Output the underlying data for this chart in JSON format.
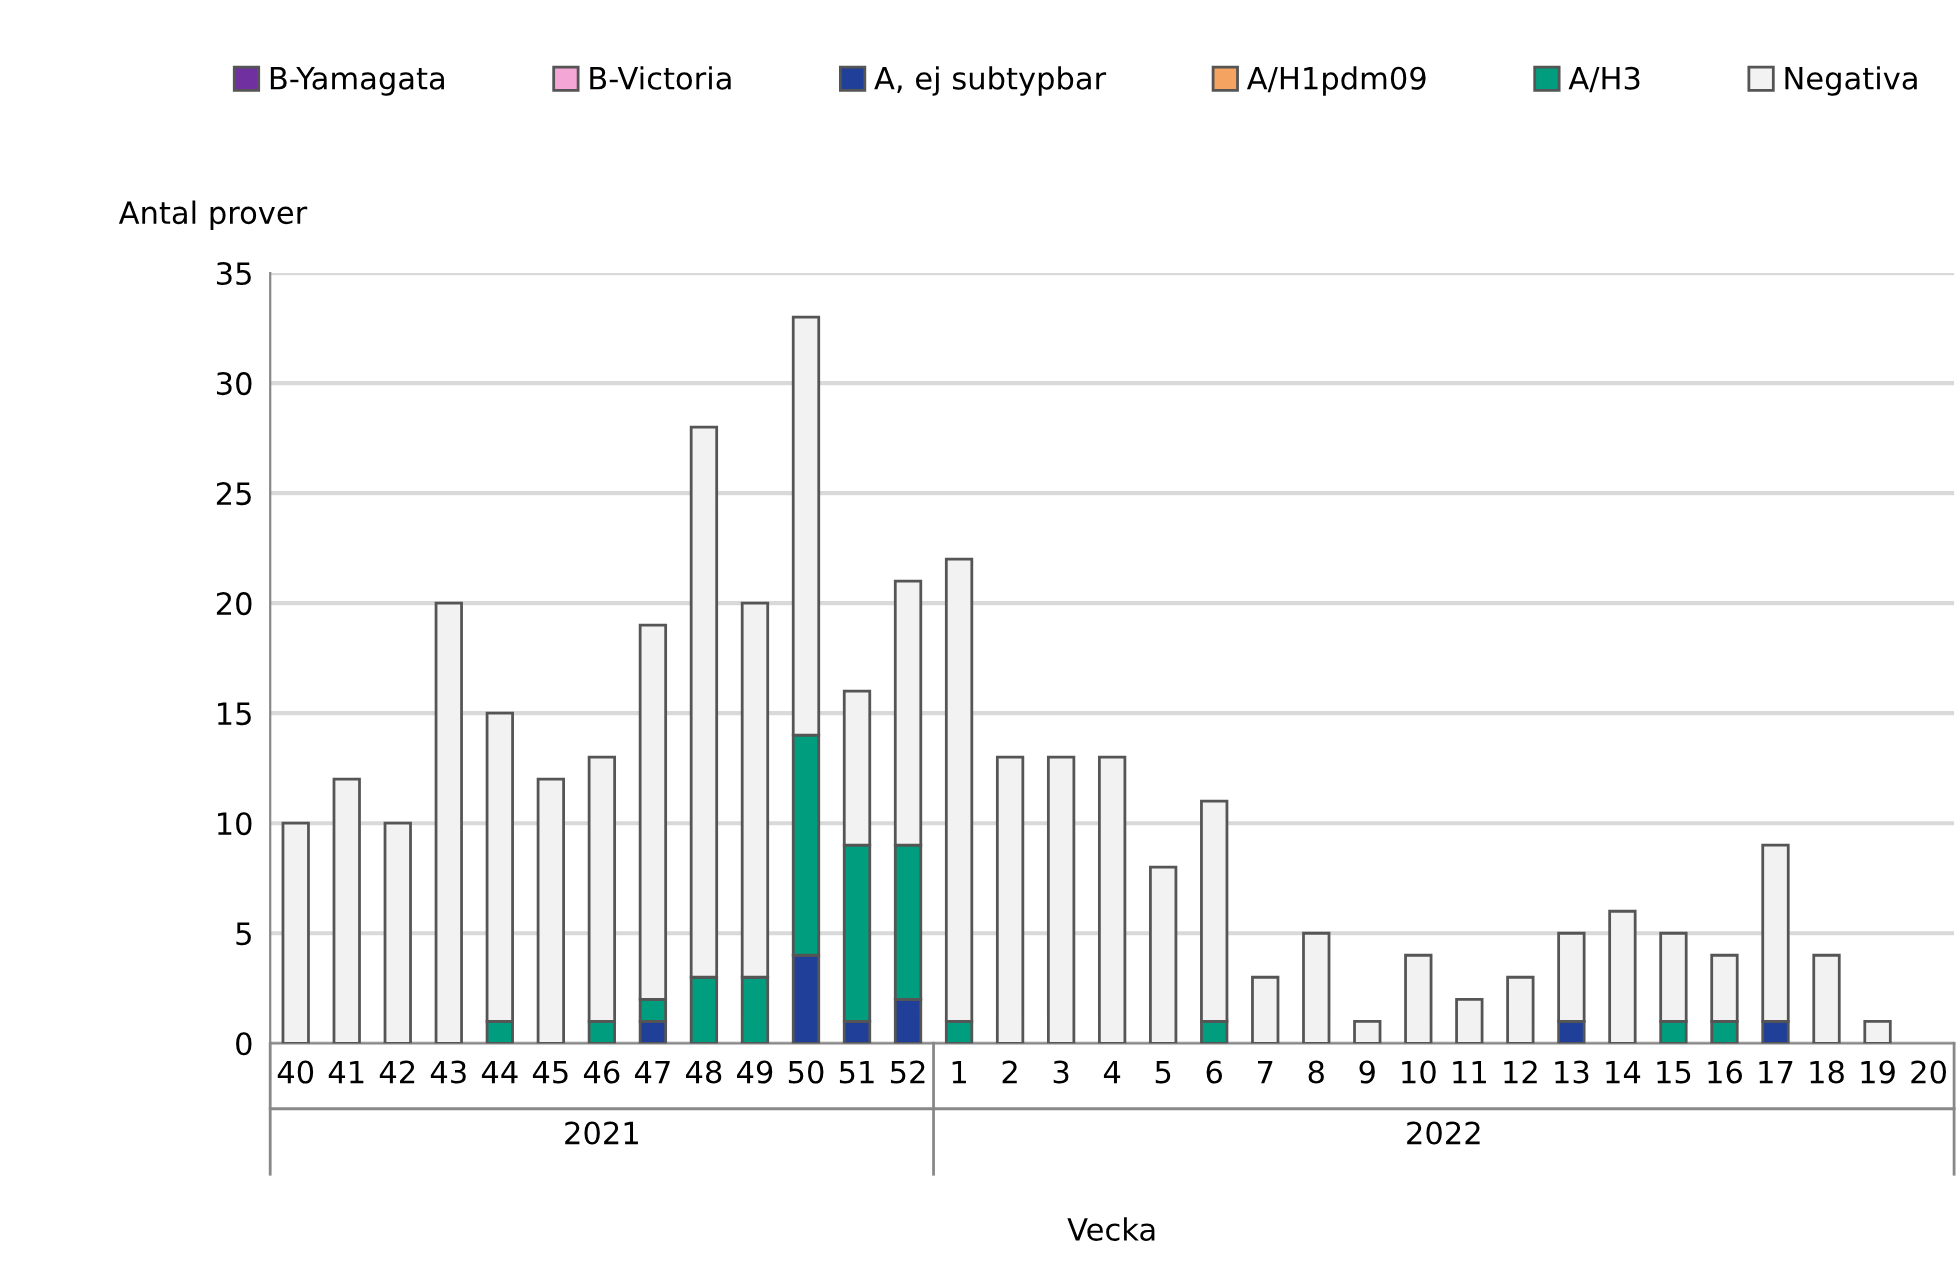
{
  "chart_data": {
    "type": "bar",
    "stacked": true,
    "ylabel": "Antal prover",
    "xlabel": "Vecka",
    "categories": [
      "40",
      "41",
      "42",
      "43",
      "44",
      "45",
      "46",
      "47",
      "48",
      "49",
      "50",
      "51",
      "52",
      "1",
      "2",
      "3",
      "4",
      "5",
      "6",
      "7",
      "8",
      "9",
      "10",
      "11",
      "12",
      "13",
      "14",
      "15",
      "16",
      "17",
      "18",
      "19",
      "20"
    ],
    "annotations": [
      "2021",
      "2022"
    ],
    "series": [
      {
        "name": "B-Yamagata",
        "color": "#7030a0",
        "values": [
          0,
          0,
          0,
          0,
          0,
          0,
          0,
          0,
          0,
          0,
          0,
          0,
          0,
          0,
          0,
          0,
          0,
          0,
          0,
          0,
          0,
          0,
          0,
          0,
          0,
          0,
          0,
          0,
          0,
          0,
          0,
          0,
          0
        ]
      },
      {
        "name": "B-Victoria",
        "color": "#f4a6d7",
        "values": [
          0,
          0,
          0,
          0,
          0,
          0,
          0,
          0,
          0,
          0,
          0,
          0,
          0,
          0,
          0,
          0,
          0,
          0,
          0,
          0,
          0,
          0,
          0,
          0,
          0,
          0,
          0,
          0,
          0,
          0,
          0,
          0,
          0
        ]
      },
      {
        "name": "A, ej subtypbar",
        "color": "#1f3f99",
        "values": [
          0,
          0,
          0,
          0,
          0,
          0,
          0,
          1,
          0,
          0,
          4,
          1,
          2,
          0,
          0,
          0,
          0,
          0,
          0,
          0,
          0,
          0,
          0,
          0,
          0,
          1,
          0,
          0,
          0,
          1,
          0,
          0,
          0
        ]
      },
      {
        "name": "A/H1pdm09",
        "color": "#f4a460",
        "values": [
          0,
          0,
          0,
          0,
          0,
          0,
          0,
          0,
          0,
          0,
          0,
          0,
          0,
          0,
          0,
          0,
          0,
          0,
          0,
          0,
          0,
          0,
          0,
          0,
          0,
          0,
          0,
          0,
          0,
          0,
          0,
          0,
          0
        ]
      },
      {
        "name": "A/H3",
        "color": "#009e7e",
        "values": [
          0,
          0,
          0,
          0,
          1,
          0,
          1,
          1,
          3,
          3,
          10,
          8,
          7,
          1,
          0,
          0,
          0,
          0,
          1,
          0,
          0,
          0,
          0,
          0,
          0,
          0,
          0,
          1,
          1,
          0,
          0,
          0,
          0
        ]
      },
      {
        "name": "Negativa",
        "color": "#f2f2f2",
        "values": [
          10,
          12,
          10,
          20,
          14,
          12,
          12,
          17,
          25,
          17,
          19,
          7,
          12,
          21,
          13,
          13,
          13,
          8,
          10,
          3,
          5,
          1,
          4,
          2,
          3,
          4,
          6,
          4,
          3,
          8,
          4,
          1,
          0
        ]
      }
    ],
    "ylim": [
      0,
      35
    ],
    "yticks": [
      0,
      5,
      10,
      15,
      20,
      25,
      30,
      35
    ],
    "grid": "y",
    "legend": "top"
  }
}
